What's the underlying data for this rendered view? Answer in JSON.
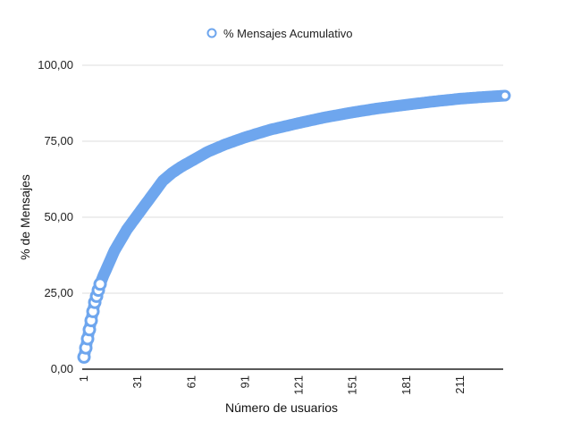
{
  "chart_data": {
    "type": "line",
    "xlabel": "Número de usuarios",
    "ylabel": "% de Mensajes",
    "xlim": [
      1,
      236
    ],
    "ylim": [
      0,
      100
    ],
    "x_ticks": [
      "1",
      "31",
      "61",
      "91",
      "121",
      "151",
      "181",
      "211"
    ],
    "y_ticks": [
      "0,00",
      "25,00",
      "50,00",
      "75,00",
      "100,00"
    ],
    "grid": true,
    "legend_position": "top",
    "colors": {
      "series": "#6ea6ee",
      "grid": "#dddddd",
      "axis": "#222222"
    },
    "series": [
      {
        "name": "% Mensajes Acumulativo",
        "points": [
          [
            1,
            4
          ],
          [
            2,
            7
          ],
          [
            3,
            10
          ],
          [
            4,
            13
          ],
          [
            5,
            16
          ],
          [
            6,
            19
          ],
          [
            7,
            22
          ],
          [
            8,
            24
          ],
          [
            9,
            26
          ],
          [
            10,
            28
          ],
          [
            12,
            31
          ],
          [
            15,
            35
          ],
          [
            18,
            39
          ],
          [
            21,
            42
          ],
          [
            25,
            46
          ],
          [
            30,
            50
          ],
          [
            35,
            54
          ],
          [
            40,
            58
          ],
          [
            45,
            62
          ],
          [
            50,
            64.5
          ],
          [
            55,
            66.5
          ],
          [
            61,
            68.5
          ],
          [
            70,
            71.5
          ],
          [
            80,
            74
          ],
          [
            91,
            76.3
          ],
          [
            105,
            78.8
          ],
          [
            121,
            81
          ],
          [
            135,
            82.8
          ],
          [
            151,
            84.5
          ],
          [
            165,
            85.8
          ],
          [
            181,
            87
          ],
          [
            195,
            88
          ],
          [
            211,
            89
          ],
          [
            225,
            89.6
          ],
          [
            236,
            90
          ]
        ]
      }
    ]
  }
}
